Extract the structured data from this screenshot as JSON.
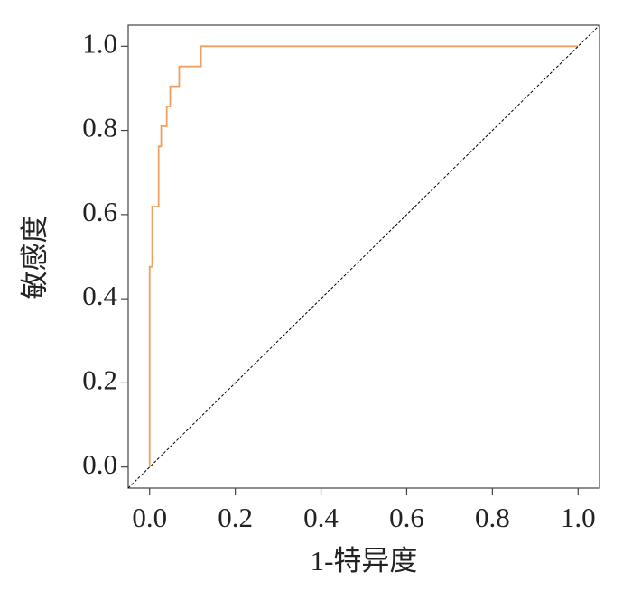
{
  "chart_data": {
    "type": "line",
    "x_label": "1-特异度",
    "y_label": "敏感度",
    "xlim": [
      -0.05,
      1.05
    ],
    "ylim": [
      -0.05,
      1.05
    ],
    "xticks": [
      {
        "value": 0,
        "label": "0.0"
      },
      0.2,
      0.4,
      0.6,
      0.8,
      {
        "value": 1,
        "label": "1.0"
      }
    ],
    "yticks": [
      {
        "value": 0,
        "label": "0.0"
      },
      0.2,
      0.4,
      0.6,
      0.8,
      {
        "value": 1,
        "label": "1.0"
      }
    ],
    "series": [
      {
        "color": "#f0a060",
        "style": "solid",
        "x": [
          0,
          0,
          0.006,
          0.006,
          0.021,
          0.021,
          0.027,
          0.027,
          0.04,
          0.04,
          0.048,
          0.048,
          0.069,
          0.069,
          0.12,
          0.12,
          1.0
        ],
        "values": [
          0,
          0.476,
          0.476,
          0.619,
          0.619,
          0.762,
          0.762,
          0.81,
          0.81,
          0.857,
          0.857,
          0.905,
          0.905,
          0.952,
          0.952,
          1.0,
          1.0
        ]
      },
      {
        "color": "#000000",
        "style": "dashed",
        "x": [
          -0.05,
          1.05
        ],
        "values": [
          -0.05,
          1.05
        ]
      }
    ]
  }
}
